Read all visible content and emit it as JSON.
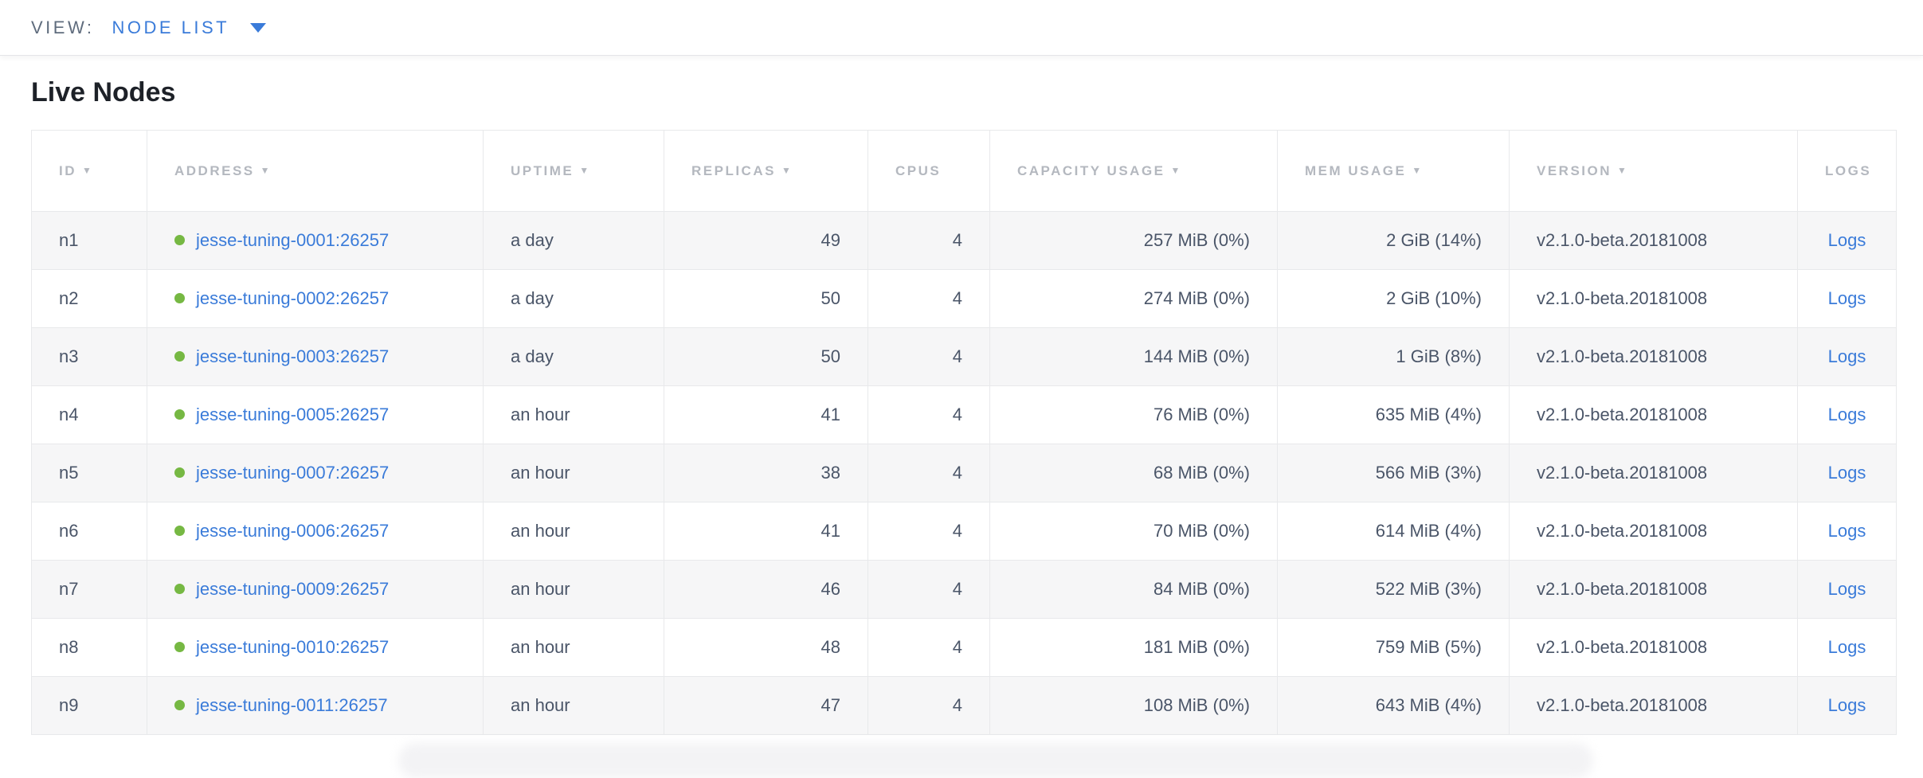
{
  "topbar": {
    "view_label": "VIEW:",
    "view_value": "NODE LIST"
  },
  "page": {
    "title": "Live Nodes"
  },
  "icons": {
    "sort_desc": "▼"
  },
  "colors": {
    "link_blue": "#3a7bd9",
    "live_green": "#76b843",
    "header_gray": "#b4b8bf",
    "cell_text": "#4a5568",
    "row_stripe": "#f6f6f7",
    "border": "#e8e9eb"
  },
  "table": {
    "columns": [
      {
        "key": "id",
        "label": "ID",
        "sortable": true,
        "align": "left"
      },
      {
        "key": "address",
        "label": "ADDRESS",
        "sortable": true,
        "align": "left"
      },
      {
        "key": "uptime",
        "label": "UPTIME",
        "sortable": true,
        "align": "left"
      },
      {
        "key": "replicas",
        "label": "REPLICAS",
        "sortable": true,
        "align": "right"
      },
      {
        "key": "cpus",
        "label": "CPUS",
        "sortable": false,
        "align": "right"
      },
      {
        "key": "capacity_usage",
        "label": "CAPACITY USAGE",
        "sortable": true,
        "align": "right"
      },
      {
        "key": "mem_usage",
        "label": "MEM USAGE",
        "sortable": true,
        "align": "right"
      },
      {
        "key": "version",
        "label": "VERSION",
        "sortable": true,
        "align": "left"
      },
      {
        "key": "logs",
        "label": "LOGS",
        "sortable": false,
        "align": "center"
      }
    ],
    "rows": [
      {
        "id": "n1",
        "status": "live",
        "address": "jesse-tuning-0001:26257",
        "uptime": "a day",
        "replicas": "49",
        "cpus": "4",
        "capacity_usage": "257 MiB (0%)",
        "mem_usage": "2 GiB (14%)",
        "version": "v2.1.0-beta.20181008",
        "logs": "Logs"
      },
      {
        "id": "n2",
        "status": "live",
        "address": "jesse-tuning-0002:26257",
        "uptime": "a day",
        "replicas": "50",
        "cpus": "4",
        "capacity_usage": "274 MiB (0%)",
        "mem_usage": "2 GiB (10%)",
        "version": "v2.1.0-beta.20181008",
        "logs": "Logs"
      },
      {
        "id": "n3",
        "status": "live",
        "address": "jesse-tuning-0003:26257",
        "uptime": "a day",
        "replicas": "50",
        "cpus": "4",
        "capacity_usage": "144 MiB (0%)",
        "mem_usage": "1 GiB (8%)",
        "version": "v2.1.0-beta.20181008",
        "logs": "Logs"
      },
      {
        "id": "n4",
        "status": "live",
        "address": "jesse-tuning-0005:26257",
        "uptime": "an hour",
        "replicas": "41",
        "cpus": "4",
        "capacity_usage": "76 MiB (0%)",
        "mem_usage": "635 MiB (4%)",
        "version": "v2.1.0-beta.20181008",
        "logs": "Logs"
      },
      {
        "id": "n5",
        "status": "live",
        "address": "jesse-tuning-0007:26257",
        "uptime": "an hour",
        "replicas": "38",
        "cpus": "4",
        "capacity_usage": "68 MiB (0%)",
        "mem_usage": "566 MiB (3%)",
        "version": "v2.1.0-beta.20181008",
        "logs": "Logs"
      },
      {
        "id": "n6",
        "status": "live",
        "address": "jesse-tuning-0006:26257",
        "uptime": "an hour",
        "replicas": "41",
        "cpus": "4",
        "capacity_usage": "70 MiB (0%)",
        "mem_usage": "614 MiB (4%)",
        "version": "v2.1.0-beta.20181008",
        "logs": "Logs"
      },
      {
        "id": "n7",
        "status": "live",
        "address": "jesse-tuning-0009:26257",
        "uptime": "an hour",
        "replicas": "46",
        "cpus": "4",
        "capacity_usage": "84 MiB (0%)",
        "mem_usage": "522 MiB (3%)",
        "version": "v2.1.0-beta.20181008",
        "logs": "Logs"
      },
      {
        "id": "n8",
        "status": "live",
        "address": "jesse-tuning-0010:26257",
        "uptime": "an hour",
        "replicas": "48",
        "cpus": "4",
        "capacity_usage": "181 MiB (0%)",
        "mem_usage": "759 MiB (5%)",
        "version": "v2.1.0-beta.20181008",
        "logs": "Logs"
      },
      {
        "id": "n9",
        "status": "live",
        "address": "jesse-tuning-0011:26257",
        "uptime": "an hour",
        "replicas": "47",
        "cpus": "4",
        "capacity_usage": "108 MiB (0%)",
        "mem_usage": "643 MiB (4%)",
        "version": "v2.1.0-beta.20181008",
        "logs": "Logs"
      }
    ]
  }
}
